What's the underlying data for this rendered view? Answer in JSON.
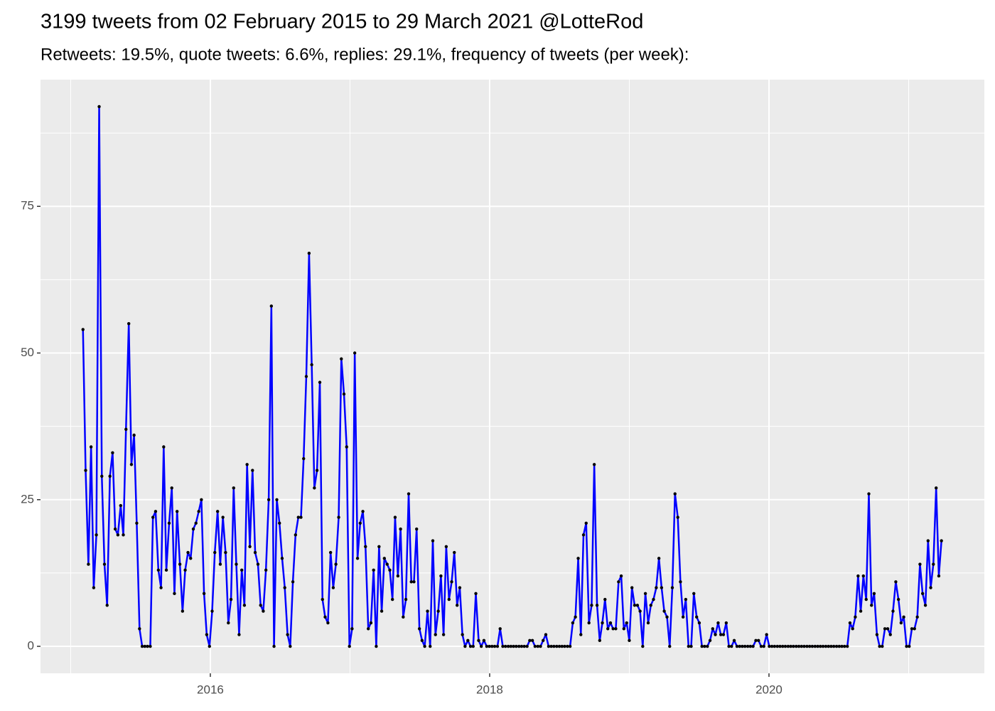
{
  "chart_data": {
    "type": "line",
    "title": "3199 tweets from 02 February 2015 to 29 March 2021 @LotteRod",
    "subtitle": "Retweets: 19.5%, quote tweets: 6.6%, replies: 29.1%, frequency of tweets (per week):",
    "color": "#0000ff",
    "point_color": "#000000",
    "grid": true,
    "xlim": [
      2014.784,
      2021.542
    ],
    "ylim": [
      -4.6,
      96.6
    ],
    "xticks": [
      2016,
      2018,
      2020
    ],
    "yticks": [
      0,
      25,
      50,
      75
    ],
    "x": [
      2015.088,
      2015.107,
      2015.127,
      2015.146,
      2015.165,
      2015.184,
      2015.204,
      2015.223,
      2015.242,
      2015.261,
      2015.281,
      2015.3,
      2015.319,
      2015.338,
      2015.358,
      2015.377,
      2015.396,
      2015.416,
      2015.435,
      2015.454,
      2015.473,
      2015.493,
      2015.512,
      2015.531,
      2015.55,
      2015.57,
      2015.589,
      2015.608,
      2015.628,
      2015.647,
      2015.666,
      2015.685,
      2015.705,
      2015.724,
      2015.743,
      2015.762,
      2015.782,
      2015.801,
      2015.82,
      2015.84,
      2015.859,
      2015.878,
      2015.897,
      2015.917,
      2015.936,
      2015.955,
      2015.974,
      2015.994,
      2016.013,
      2016.032,
      2016.052,
      2016.071,
      2016.09,
      2016.109,
      2016.129,
      2016.148,
      2016.167,
      2016.186,
      2016.206,
      2016.225,
      2016.244,
      2016.263,
      2016.283,
      2016.302,
      2016.321,
      2016.341,
      2016.36,
      2016.379,
      2016.398,
      2016.418,
      2016.437,
      2016.456,
      2016.476,
      2016.495,
      2016.514,
      2016.533,
      2016.553,
      2016.572,
      2016.591,
      2016.61,
      2016.63,
      2016.649,
      2016.668,
      2016.687,
      2016.707,
      2016.726,
      2016.745,
      2016.764,
      2016.784,
      2016.803,
      2016.822,
      2016.842,
      2016.861,
      2016.88,
      2016.899,
      2016.919,
      2016.938,
      2016.957,
      2016.976,
      2016.996,
      2017.015,
      2017.034,
      2017.054,
      2017.073,
      2017.092,
      2017.111,
      2017.131,
      2017.15,
      2017.169,
      2017.188,
      2017.208,
      2017.227,
      2017.246,
      2017.266,
      2017.285,
      2017.304,
      2017.323,
      2017.343,
      2017.362,
      2017.381,
      2017.4,
      2017.42,
      2017.439,
      2017.458,
      2017.477,
      2017.497,
      2017.516,
      2017.535,
      2017.555,
      2017.574,
      2017.593,
      2017.612,
      2017.632,
      2017.651,
      2017.67,
      2017.689,
      2017.709,
      2017.728,
      2017.747,
      2017.767,
      2017.786,
      2017.805,
      2017.824,
      2017.844,
      2017.863,
      2017.882,
      2017.901,
      2017.921,
      2017.94,
      2017.959,
      2017.979,
      2017.998,
      2018.017,
      2018.036,
      2018.056,
      2018.075,
      2018.094,
      2018.113,
      2018.133,
      2018.152,
      2018.171,
      2018.19,
      2018.21,
      2018.229,
      2018.248,
      2018.268,
      2018.287,
      2018.306,
      2018.325,
      2018.345,
      2018.364,
      2018.383,
      2018.402,
      2018.422,
      2018.441,
      2018.46,
      2018.48,
      2018.499,
      2018.518,
      2018.537,
      2018.557,
      2018.576,
      2018.595,
      2018.614,
      2018.634,
      2018.653,
      2018.672,
      2018.691,
      2018.711,
      2018.73,
      2018.749,
      2018.769,
      2018.788,
      2018.807,
      2018.826,
      2018.846,
      2018.865,
      2018.884,
      2018.903,
      2018.923,
      2018.942,
      2018.961,
      2018.981,
      2019.0,
      2019.019,
      2019.038,
      2019.058,
      2019.077,
      2019.096,
      2019.115,
      2019.135,
      2019.154,
      2019.173,
      2019.193,
      2019.212,
      2019.231,
      2019.25,
      2019.27,
      2019.289,
      2019.308,
      2019.327,
      2019.347,
      2019.366,
      2019.385,
      2019.404,
      2019.424,
      2019.443,
      2019.462,
      2019.482,
      2019.501,
      2019.52,
      2019.539,
      2019.559,
      2019.578,
      2019.597,
      2019.616,
      2019.636,
      2019.655,
      2019.674,
      2019.694,
      2019.713,
      2019.732,
      2019.751,
      2019.771,
      2019.79,
      2019.809,
      2019.828,
      2019.848,
      2019.867,
      2019.886,
      2019.906,
      2019.925,
      2019.944,
      2019.963,
      2019.983,
      2020.002,
      2020.021,
      2020.04,
      2020.06,
      2020.079,
      2020.098,
      2020.117,
      2020.137,
      2020.156,
      2020.175,
      2020.195,
      2020.214,
      2020.233,
      2020.252,
      2020.272,
      2020.291,
      2020.31,
      2020.33,
      2020.349,
      2020.368,
      2020.387,
      2020.407,
      2020.426,
      2020.445,
      2020.464,
      2020.484,
      2020.503,
      2020.522,
      2020.541,
      2020.561,
      2020.58,
      2020.599,
      2020.618,
      2020.638,
      2020.657,
      2020.676,
      2020.696,
      2020.715,
      2020.734,
      2020.753,
      2020.773,
      2020.792,
      2020.811,
      2020.83,
      2020.85,
      2020.869,
      2020.888,
      2020.908,
      2020.927,
      2020.946,
      2020.965,
      2020.985,
      2021.004,
      2021.023,
      2021.042,
      2021.062,
      2021.081,
      2021.1,
      2021.12,
      2021.139,
      2021.158,
      2021.177,
      2021.197,
      2021.216,
      2021.235
    ],
    "values": [
      54,
      30,
      14,
      34,
      10,
      19,
      92,
      29,
      14,
      7,
      29,
      33,
      20,
      19,
      24,
      19,
      37,
      55,
      31,
      36,
      21,
      3,
      0,
      0,
      0,
      0,
      22,
      23,
      13,
      10,
      34,
      13,
      21,
      27,
      9,
      23,
      14,
      6,
      13,
      16,
      15,
      20,
      21,
      23,
      25,
      9,
      2,
      0,
      6,
      16,
      23,
      14,
      22,
      16,
      4,
      8,
      27,
      14,
      2,
      13,
      7,
      31,
      17,
      30,
      16,
      14,
      7,
      6,
      13,
      25,
      58,
      0,
      25,
      21,
      15,
      10,
      2,
      0,
      11,
      19,
      22,
      22,
      32,
      46,
      67,
      48,
      27,
      30,
      45,
      8,
      5,
      4,
      16,
      10,
      14,
      22,
      49,
      43,
      34,
      0,
      3,
      50,
      15,
      21,
      23,
      17,
      3,
      4,
      13,
      0,
      17,
      6,
      15,
      14,
      13,
      8,
      22,
      12,
      20,
      5,
      8,
      26,
      11,
      11,
      20,
      3,
      1,
      0,
      6,
      0,
      18,
      2,
      6,
      12,
      2,
      17,
      8,
      11,
      16,
      7,
      10,
      2,
      0,
      1,
      0,
      0,
      9,
      1,
      0,
      1,
      0,
      0,
      0,
      0,
      0,
      3,
      0,
      0,
      0,
      0,
      0,
      0,
      0,
      0,
      0,
      0,
      1,
      1,
      0,
      0,
      0,
      1,
      2,
      0,
      0,
      0,
      0,
      0,
      0,
      0,
      0,
      0,
      4,
      5,
      15,
      2,
      19,
      21,
      4,
      7,
      31,
      7,
      1,
      4,
      8,
      3,
      4,
      3,
      3,
      11,
      12,
      3,
      4,
      1,
      10,
      7,
      7,
      6,
      0,
      9,
      4,
      7,
      8,
      10,
      15,
      10,
      6,
      5,
      0,
      10,
      26,
      22,
      11,
      5,
      8,
      0,
      0,
      9,
      5,
      4,
      0,
      0,
      0,
      1,
      3,
      2,
      4,
      2,
      2,
      4,
      0,
      0,
      1,
      0,
      0,
      0,
      0,
      0,
      0,
      0,
      1,
      1,
      0,
      0,
      2,
      0,
      0,
      0,
      0,
      0,
      0,
      0,
      0,
      0,
      0,
      0,
      0,
      0,
      0,
      0,
      0,
      0,
      0,
      0,
      0,
      0,
      0,
      0,
      0,
      0,
      0,
      0,
      0,
      0,
      0,
      4,
      3,
      5,
      12,
      6,
      12,
      8,
      26,
      7,
      9,
      2,
      0,
      0,
      3,
      3,
      2,
      6,
      11,
      8,
      4,
      5,
      0,
      0,
      3,
      3,
      5,
      14,
      9,
      7,
      18,
      10,
      14,
      27,
      12,
      18
    ]
  }
}
